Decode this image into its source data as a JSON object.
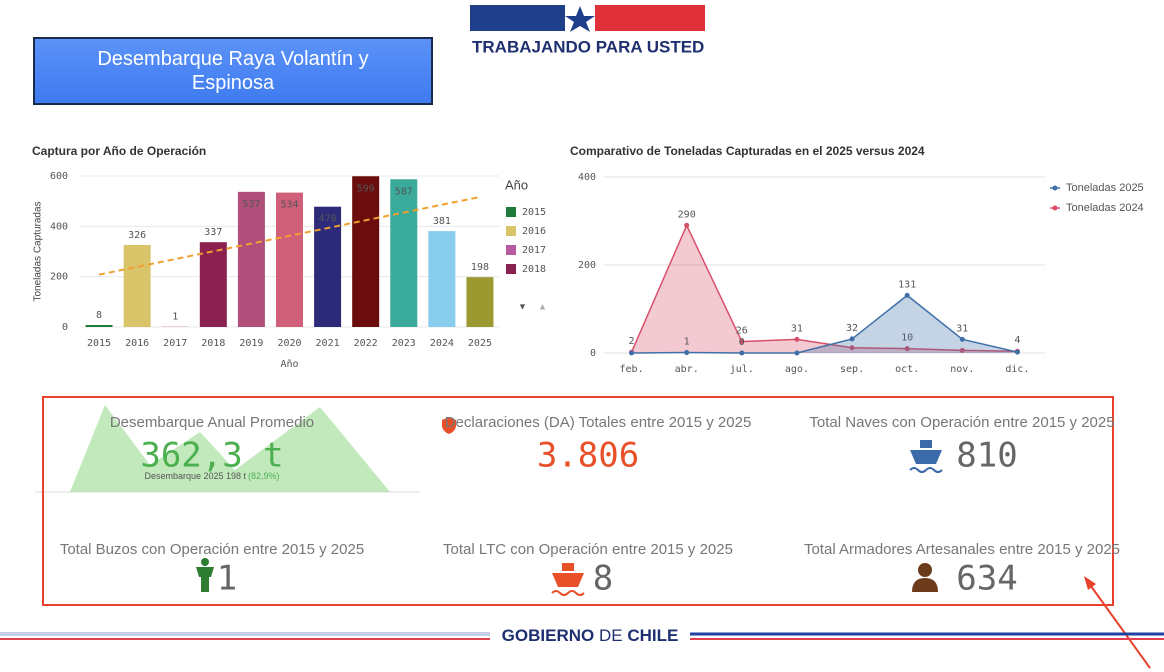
{
  "header": {
    "title": "Desembarque Raya Volantín y Espinosa",
    "logo_text": "TRABAJANDO PARA USTED"
  },
  "chart_data": [
    {
      "type": "bar",
      "title": "Captura por Año de Operación",
      "y_label": "Toneladas Capturadas",
      "x_label": "Año",
      "categories": [
        "2015",
        "2016",
        "2017",
        "2018",
        "2019",
        "2020",
        "2021",
        "2022",
        "2023",
        "2024",
        "2025"
      ],
      "values": [
        8,
        326,
        1,
        337,
        537,
        534,
        478,
        599,
        587,
        381,
        198
      ],
      "colors": [
        "#1e7b3a",
        "#d9c46a",
        "#b85aa0",
        "#8a2150",
        "#b0507a",
        "#d0607a",
        "#2e2a7a",
        "#6b0d0d",
        "#3aab9a",
        "#88ccee",
        "#9a9a30"
      ],
      "ylim": [
        0,
        600
      ],
      "yticks": [
        0,
        200,
        400,
        600
      ],
      "grid": true,
      "trend_line": true,
      "trend_color": "#f0a030",
      "legend_title": "Año",
      "legend_count": 4
    },
    {
      "type": "line",
      "title": "Comparativo de Toneladas Capturadas en el 2025 versus 2024",
      "categories": [
        "feb.",
        "abr.",
        "jul.",
        "ago.",
        "sep.",
        "oct.",
        "nov.",
        "dic."
      ],
      "series": [
        {
          "name": "Toneladas 2025",
          "color": "#3f6fa8",
          "values": [
            0,
            1,
            0,
            0,
            32,
            131,
            31,
            2
          ],
          "value_labels": [
            null,
            "1",
            "0",
            null,
            "32",
            "131",
            "31",
            null
          ]
        },
        {
          "name": "Toneladas 2024",
          "color": "#d9506a",
          "values": [
            2,
            290,
            26,
            31,
            12,
            10,
            6,
            4
          ],
          "value_labels": [
            "2",
            "290",
            "26",
            "31",
            null,
            "10",
            null,
            "4"
          ]
        }
      ],
      "ylim": [
        0,
        400
      ],
      "yticks": [
        0,
        200,
        400
      ],
      "grid": true,
      "area": true,
      "legend": "top-right"
    }
  ],
  "kpis": [
    {
      "label": "Desembarque Anual Promedio",
      "value": "362,3 t",
      "note": "Desembarque 2025 198 t",
      "note_highlight": "(82,9%)"
    },
    {
      "label": "Declaraciones (DA) Totales entre 2015 y 2025",
      "value": "3.806"
    },
    {
      "label": "Total Naves con Operación entre 2015 y 2025",
      "value": "810"
    },
    {
      "label": "Total Buzos con Operación entre 2015 y 2025",
      "value": "1"
    },
    {
      "label": "Total LTC con Operación entre 2015 y 2025",
      "value": "8"
    },
    {
      "label": "Total Armadores Artesanales entre 2015 y 2025",
      "value": "634"
    }
  ],
  "footer": {
    "parts": [
      "GOBIERNO",
      "DE",
      "CHILE"
    ]
  }
}
